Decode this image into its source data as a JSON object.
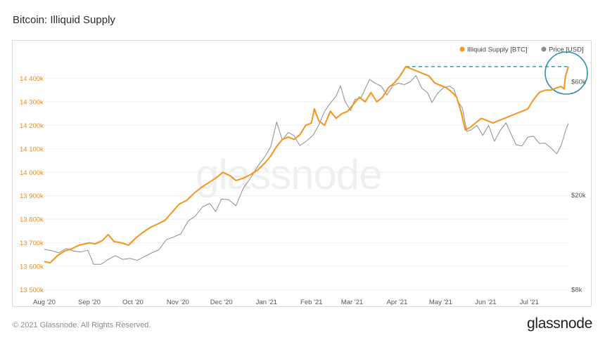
{
  "page": {
    "title": "Bitcoin: Illiquid Supply",
    "copyright": "© 2021 Glassnode. All Rights Reserved.",
    "brand": "glassnode",
    "watermark": "glassnode"
  },
  "colors": {
    "supply": "#F7931A",
    "price": "#8C8C8C",
    "highlight": "#2E8FA6",
    "grid": "#EEEEEE",
    "left_axis_text": "#E8891A",
    "right_axis_text": "#555555"
  },
  "chart_data": {
    "type": "line",
    "title": "Bitcoin: Illiquid Supply",
    "x_axis": {
      "ticks": [
        "Aug '20",
        "Sep '20",
        "Oct '20",
        "Nov '20",
        "Dec '20",
        "Jan '21",
        "Feb '21",
        "Mar '21",
        "Apr '21",
        "May '21",
        "Jun '21",
        "Jul '21"
      ],
      "range": [
        "2020-08-01",
        "2021-07-28"
      ]
    },
    "y_left": {
      "ticks": [
        "13 500k",
        "13 600k",
        "13 700k",
        "13 800k",
        "13 900k",
        "14 000k",
        "14 100k",
        "14 200k",
        "14 300k",
        "14 400k"
      ],
      "ylim": [
        13500000,
        14500000
      ]
    },
    "y_right": {
      "scale": "log",
      "ticks": [
        "$8k",
        "$20k",
        "$60k"
      ],
      "tick_values": [
        8000,
        20000,
        60000
      ]
    },
    "legend": {
      "placement": "top-right",
      "entries": [
        {
          "label": "Illiquid Supply [BTC]",
          "color": "#F7931A"
        },
        {
          "label": "Price [USD]",
          "color": "#8C8C8C"
        }
      ]
    },
    "grid": true,
    "series": [
      {
        "name": "Illiquid Supply [BTC]",
        "axis": "left",
        "points": [
          [
            "2020-08-01",
            13620000
          ],
          [
            "2020-08-05",
            13615000
          ],
          [
            "2020-08-10",
            13645000
          ],
          [
            "2020-08-15",
            13665000
          ],
          [
            "2020-08-20",
            13675000
          ],
          [
            "2020-08-25",
            13690000
          ],
          [
            "2020-09-01",
            13700000
          ],
          [
            "2020-09-05",
            13695000
          ],
          [
            "2020-09-10",
            13710000
          ],
          [
            "2020-09-14",
            13735000
          ],
          [
            "2020-09-18",
            13705000
          ],
          [
            "2020-09-23",
            13700000
          ],
          [
            "2020-09-28",
            13690000
          ],
          [
            "2020-10-03",
            13720000
          ],
          [
            "2020-10-08",
            13745000
          ],
          [
            "2020-10-13",
            13765000
          ],
          [
            "2020-10-18",
            13780000
          ],
          [
            "2020-10-23",
            13795000
          ],
          [
            "2020-10-28",
            13830000
          ],
          [
            "2020-11-02",
            13865000
          ],
          [
            "2020-11-07",
            13880000
          ],
          [
            "2020-11-12",
            13910000
          ],
          [
            "2020-11-17",
            13935000
          ],
          [
            "2020-11-22",
            13955000
          ],
          [
            "2020-11-27",
            13975000
          ],
          [
            "2020-12-02",
            14000000
          ],
          [
            "2020-12-07",
            13985000
          ],
          [
            "2020-12-11",
            13965000
          ],
          [
            "2020-12-16",
            13975000
          ],
          [
            "2020-12-21",
            13990000
          ],
          [
            "2020-12-26",
            14010000
          ],
          [
            "2020-12-31",
            14040000
          ],
          [
            "2021-01-04",
            14070000
          ],
          [
            "2021-01-08",
            14110000
          ],
          [
            "2021-01-12",
            14140000
          ],
          [
            "2021-01-16",
            14150000
          ],
          [
            "2021-01-20",
            14140000
          ],
          [
            "2021-01-24",
            14160000
          ],
          [
            "2021-01-28",
            14200000
          ],
          [
            "2021-02-01",
            14210000
          ],
          [
            "2021-02-03",
            14270000
          ],
          [
            "2021-02-06",
            14220000
          ],
          [
            "2021-02-10",
            14200000
          ],
          [
            "2021-02-14",
            14260000
          ],
          [
            "2021-02-18",
            14230000
          ],
          [
            "2021-02-22",
            14250000
          ],
          [
            "2021-02-26",
            14260000
          ],
          [
            "2021-03-02",
            14290000
          ],
          [
            "2021-03-06",
            14320000
          ],
          [
            "2021-03-10",
            14300000
          ],
          [
            "2021-03-14",
            14340000
          ],
          [
            "2021-03-18",
            14300000
          ],
          [
            "2021-03-22",
            14320000
          ],
          [
            "2021-03-26",
            14360000
          ],
          [
            "2021-03-30",
            14380000
          ],
          [
            "2021-04-03",
            14410000
          ],
          [
            "2021-04-07",
            14450000
          ],
          [
            "2021-04-11",
            14440000
          ],
          [
            "2021-04-15",
            14430000
          ],
          [
            "2021-04-19",
            14420000
          ],
          [
            "2021-04-23",
            14410000
          ],
          [
            "2021-04-27",
            14380000
          ],
          [
            "2021-05-01",
            14370000
          ],
          [
            "2021-05-05",
            14360000
          ],
          [
            "2021-05-09",
            14340000
          ],
          [
            "2021-05-12",
            14320000
          ],
          [
            "2021-05-15",
            14260000
          ],
          [
            "2021-05-18",
            14180000
          ],
          [
            "2021-05-21",
            14190000
          ],
          [
            "2021-05-25",
            14210000
          ],
          [
            "2021-05-29",
            14230000
          ],
          [
            "2021-06-02",
            14220000
          ],
          [
            "2021-06-06",
            14210000
          ],
          [
            "2021-06-10",
            14220000
          ],
          [
            "2021-06-14",
            14230000
          ],
          [
            "2021-06-18",
            14240000
          ],
          [
            "2021-06-22",
            14250000
          ],
          [
            "2021-06-26",
            14260000
          ],
          [
            "2021-06-30",
            14270000
          ],
          [
            "2021-07-04",
            14310000
          ],
          [
            "2021-07-08",
            14340000
          ],
          [
            "2021-07-12",
            14350000
          ],
          [
            "2021-07-16",
            14350000
          ],
          [
            "2021-07-20",
            14360000
          ],
          [
            "2021-07-23",
            14365000
          ],
          [
            "2021-07-25",
            14355000
          ],
          [
            "2021-07-26",
            14410000
          ],
          [
            "2021-07-28",
            14450000
          ]
        ]
      },
      {
        "name": "Price [USD]",
        "axis": "right",
        "points": [
          [
            "2020-08-01",
            11800
          ],
          [
            "2020-08-06",
            11650
          ],
          [
            "2020-08-11",
            11400
          ],
          [
            "2020-08-16",
            11900
          ],
          [
            "2020-08-21",
            11600
          ],
          [
            "2020-08-26",
            11500
          ],
          [
            "2020-08-31",
            11700
          ],
          [
            "2020-09-04",
            10200
          ],
          [
            "2020-09-09",
            10200
          ],
          [
            "2020-09-14",
            10700
          ],
          [
            "2020-09-19",
            11100
          ],
          [
            "2020-09-24",
            10700
          ],
          [
            "2020-09-29",
            10800
          ],
          [
            "2020-10-04",
            10600
          ],
          [
            "2020-10-09",
            11000
          ],
          [
            "2020-10-14",
            11400
          ],
          [
            "2020-10-19",
            11750
          ],
          [
            "2020-10-24",
            12950
          ],
          [
            "2020-10-29",
            13300
          ],
          [
            "2020-11-03",
            13700
          ],
          [
            "2020-11-08",
            15500
          ],
          [
            "2020-11-13",
            16300
          ],
          [
            "2020-11-18",
            17800
          ],
          [
            "2020-11-23",
            18400
          ],
          [
            "2020-11-27",
            17000
          ],
          [
            "2020-12-01",
            19200
          ],
          [
            "2020-12-06",
            19100
          ],
          [
            "2020-12-11",
            18000
          ],
          [
            "2020-12-16",
            21300
          ],
          [
            "2020-12-21",
            23500
          ],
          [
            "2020-12-26",
            26400
          ],
          [
            "2020-12-31",
            29000
          ],
          [
            "2021-01-04",
            31900
          ],
          [
            "2021-01-08",
            40500
          ],
          [
            "2021-01-12",
            34000
          ],
          [
            "2021-01-16",
            36600
          ],
          [
            "2021-01-20",
            35500
          ],
          [
            "2021-01-24",
            32200
          ],
          [
            "2021-01-28",
            33500
          ],
          [
            "2021-02-02",
            35600
          ],
          [
            "2021-02-06",
            39300
          ],
          [
            "2021-02-10",
            44800
          ],
          [
            "2021-02-14",
            48700
          ],
          [
            "2021-02-18",
            52100
          ],
          [
            "2021-02-21",
            57500
          ],
          [
            "2021-02-24",
            49700
          ],
          [
            "2021-02-28",
            45200
          ],
          [
            "2021-03-03",
            50400
          ],
          [
            "2021-03-07",
            51100
          ],
          [
            "2021-03-10",
            55900
          ],
          [
            "2021-03-13",
            61200
          ],
          [
            "2021-03-17",
            58900
          ],
          [
            "2021-03-21",
            57400
          ],
          [
            "2021-03-25",
            52600
          ],
          [
            "2021-03-29",
            57600
          ],
          [
            "2021-04-02",
            59000
          ],
          [
            "2021-04-06",
            58200
          ],
          [
            "2021-04-10",
            59800
          ],
          [
            "2021-04-14",
            63500
          ],
          [
            "2021-04-18",
            56200
          ],
          [
            "2021-04-22",
            53800
          ],
          [
            "2021-04-25",
            49000
          ],
          [
            "2021-04-29",
            53600
          ],
          [
            "2021-05-03",
            56600
          ],
          [
            "2021-05-07",
            57400
          ],
          [
            "2021-05-10",
            55800
          ],
          [
            "2021-05-13",
            49400
          ],
          [
            "2021-05-16",
            46400
          ],
          [
            "2021-05-19",
            37000
          ],
          [
            "2021-05-22",
            37500
          ],
          [
            "2021-05-26",
            39200
          ],
          [
            "2021-05-30",
            35600
          ],
          [
            "2021-06-03",
            39200
          ],
          [
            "2021-06-07",
            33600
          ],
          [
            "2021-06-11",
            37300
          ],
          [
            "2021-06-15",
            40200
          ],
          [
            "2021-06-19",
            35500
          ],
          [
            "2021-06-22",
            32500
          ],
          [
            "2021-06-26",
            32100
          ],
          [
            "2021-06-30",
            35000
          ],
          [
            "2021-07-04",
            35300
          ],
          [
            "2021-07-08",
            32900
          ],
          [
            "2021-07-12",
            33000
          ],
          [
            "2021-07-16",
            31500
          ],
          [
            "2021-07-20",
            29800
          ],
          [
            "2021-07-23",
            32300
          ],
          [
            "2021-07-25",
            35400
          ],
          [
            "2021-07-26",
            37300
          ],
          [
            "2021-07-28",
            40000
          ]
        ]
      }
    ],
    "annotations": [
      {
        "kind": "dashed-horizontal-line",
        "value": 14450000,
        "from": "2021-04-07",
        "to": "2021-07-28",
        "color": "#2E8FA6"
      },
      {
        "kind": "circle-highlight",
        "at": "2021-07-28",
        "color": "#2E8FA6"
      }
    ]
  }
}
